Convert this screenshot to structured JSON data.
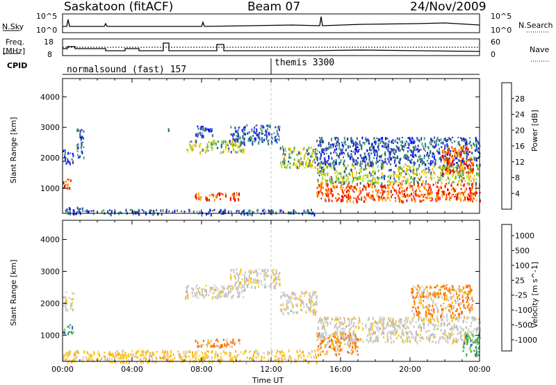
{
  "header": {
    "station": "Saskatoon (fitACF)",
    "beam": "Beam 07",
    "date": "24/Nov/2009"
  },
  "status_panel": {
    "left_label_1": "N.Sky",
    "left_ticks_1": [
      "10^5",
      "10^0"
    ],
    "right_label_1": "N.Search",
    "right_ticks_1": [
      "10^5",
      "10^0"
    ],
    "left_label_2a": "Freq.",
    "left_label_2b": "[MHz]",
    "left_ticks_2": [
      "18",
      "8"
    ],
    "right_label_2": "Nave",
    "right_ticks_2": [
      "60",
      "0"
    ],
    "cpid_label": "CPID",
    "cpid_1": "normalsound (fast) 157",
    "cpid_2": "themis 3300"
  },
  "chart_data": [
    {
      "type": "heatmap",
      "title": "",
      "xlabel": "Time UT",
      "ylabel": "Slant Range [km]",
      "xlim": [
        0,
        24
      ],
      "ylim": [
        180,
        4600
      ],
      "x_ticks": [
        "00:00",
        "04:00",
        "08:00",
        "12:00",
        "16:00",
        "20:00",
        "00:00"
      ],
      "y_ticks": [
        "1000",
        "2000",
        "3000",
        "4000"
      ],
      "colorbar_label": "Power [dB]",
      "colorbar_ticks": [
        "28",
        "24",
        "20",
        "16",
        "12",
        "8",
        "4"
      ],
      "colorbar_colors": [
        "#e00000",
        "#ff3300",
        "#ff8000",
        "#ffb000",
        "#e0e000",
        "#a0d040",
        "#50b050",
        "#40a070",
        "#307080",
        "#3050a0",
        "#3030c0",
        "#0010ff"
      ],
      "regions": [
        {
          "t": [
            0.0,
            1.4
          ],
          "r": [
            180,
            420
          ],
          "level": "weak"
        },
        {
          "t": [
            1.4,
            14.6
          ],
          "r": [
            180,
            330
          ],
          "level": "weak"
        },
        {
          "t": [
            0.0,
            0.5
          ],
          "r": [
            1000,
            1350
          ],
          "level": "strong"
        },
        {
          "t": [
            0.0,
            0.6
          ],
          "r": [
            1800,
            2300
          ],
          "level": "weak"
        },
        {
          "t": [
            0.8,
            1.2
          ],
          "r": [
            2000,
            3000
          ],
          "level": "weak"
        },
        {
          "t": [
            6.0,
            6.2
          ],
          "r": [
            2900,
            3050
          ],
          "level": "weak"
        },
        {
          "t": [
            7.0,
            10.5
          ],
          "r": [
            2200,
            2600
          ],
          "level": "medium"
        },
        {
          "t": [
            7.6,
            8.6
          ],
          "r": [
            2700,
            3100
          ],
          "level": "weak"
        },
        {
          "t": [
            9.6,
            12.5
          ],
          "r": [
            2500,
            3100
          ],
          "level": "weak"
        },
        {
          "t": [
            12.5,
            14.6
          ],
          "r": [
            1700,
            2400
          ],
          "level": "medium"
        },
        {
          "t": [
            7.6,
            10.2
          ],
          "r": [
            650,
            900
          ],
          "level": "strong"
        },
        {
          "t": [
            14.6,
            24.0
          ],
          "r": [
            600,
            1200
          ],
          "level": "strong"
        },
        {
          "t": [
            14.6,
            24.0
          ],
          "r": [
            1200,
            1800
          ],
          "level": "medium"
        },
        {
          "t": [
            14.6,
            24.0
          ],
          "r": [
            1800,
            2700
          ],
          "level": "weak"
        },
        {
          "t": [
            21.8,
            23.6
          ],
          "r": [
            1500,
            2400
          ],
          "level": "strong"
        }
      ]
    },
    {
      "type": "heatmap",
      "title": "",
      "xlabel": "Time UT",
      "ylabel": "Slant Range [km]",
      "xlim": [
        0,
        24
      ],
      "ylim": [
        180,
        4600
      ],
      "x_ticks": [
        "00:00",
        "04:00",
        "08:00",
        "12:00",
        "16:00",
        "20:00",
        "00:00"
      ],
      "y_ticks": [
        "1000",
        "2000",
        "3000",
        "4000"
      ],
      "colorbar_label": "Velocity [m s^-1]",
      "colorbar_ticks": [
        "1000",
        "500",
        "100",
        "25",
        "-25",
        "-100",
        "-500",
        "-1000"
      ],
      "colorbar_colors": [
        "#2040b0",
        "#3070a0",
        "#40a060",
        "#60d040",
        "#c8c8c8",
        "#ffc000",
        "#ff8000",
        "#ff4000",
        "#e00000"
      ],
      "regions": [
        {
          "t": [
            0.0,
            14.6
          ],
          "r": [
            180,
            550
          ],
          "level": "neg_small"
        },
        {
          "t": [
            0.0,
            0.6
          ],
          "r": [
            1050,
            1350
          ],
          "level": "pos_mid"
        },
        {
          "t": [
            0.0,
            0.6
          ],
          "r": [
            1800,
            2400
          ],
          "level": "zero"
        },
        {
          "t": [
            7.6,
            10.2
          ],
          "r": [
            650,
            900
          ],
          "level": "neg_mid"
        },
        {
          "t": [
            7.0,
            10.5
          ],
          "r": [
            2200,
            2600
          ],
          "level": "zero"
        },
        {
          "t": [
            9.6,
            12.5
          ],
          "r": [
            2500,
            3100
          ],
          "level": "zero"
        },
        {
          "t": [
            12.5,
            14.6
          ],
          "r": [
            1700,
            2400
          ],
          "level": "zero"
        },
        {
          "t": [
            14.6,
            24.0
          ],
          "r": [
            800,
            1100
          ],
          "level": "zero"
        },
        {
          "t": [
            14.6,
            17.0
          ],
          "r": [
            400,
            1100
          ],
          "level": "neg_mid"
        },
        {
          "t": [
            14.6,
            24.0
          ],
          "r": [
            1100,
            1600
          ],
          "level": "zero"
        },
        {
          "t": [
            20.0,
            23.6
          ],
          "r": [
            1600,
            2600
          ],
          "level": "neg_mid"
        },
        {
          "t": [
            23.0,
            24.0
          ],
          "r": [
            400,
            1100
          ],
          "level": "pos_mid"
        }
      ]
    }
  ]
}
